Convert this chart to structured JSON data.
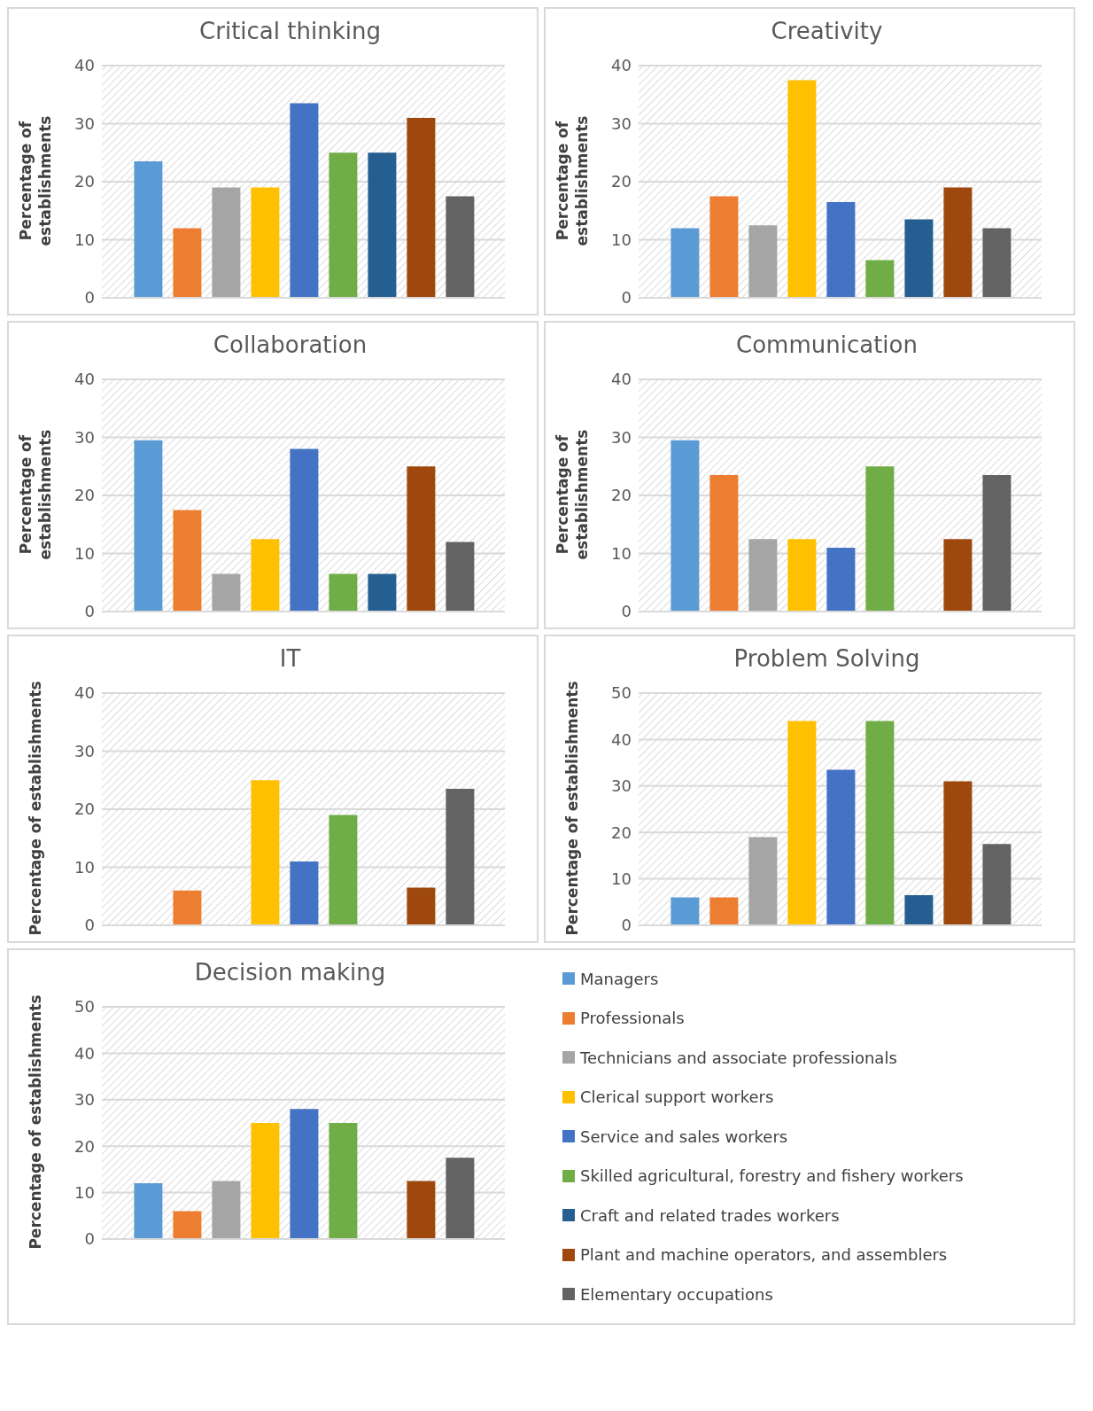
{
  "chart_data": [
    {
      "type": "bar",
      "title": "Critical thinking",
      "ylabel": "Percentage of establishments",
      "categories": [
        null
      ],
      "ylim": [
        0,
        40
      ],
      "yticks": [
        0,
        10,
        20,
        30,
        40
      ],
      "grid": "y",
      "legend": false,
      "series": [
        {
          "color": "#5b9bd5",
          "values": [
            23.5
          ]
        },
        {
          "color": "#ed7d31",
          "values": [
            12
          ]
        },
        {
          "color": "#a5a5a5",
          "values": [
            19
          ]
        },
        {
          "color": "#ffc000",
          "values": [
            19
          ]
        },
        {
          "color": "#4472c4",
          "values": [
            33.5
          ]
        },
        {
          "color": "#70ad47",
          "values": [
            25
          ]
        },
        {
          "color": "#255e91",
          "values": [
            25
          ]
        },
        {
          "color": "#9e480e",
          "values": [
            31
          ]
        },
        {
          "color": "#636363",
          "values": [
            17.5
          ]
        }
      ]
    },
    {
      "type": "bar",
      "title": "Creativity",
      "ylabel": "Percentage of establishments",
      "categories": [
        null
      ],
      "ylim": [
        0,
        40
      ],
      "yticks": [
        0,
        10,
        20,
        30,
        40
      ],
      "grid": "y",
      "legend": false,
      "series": [
        {
          "color": "#5b9bd5",
          "values": [
            12
          ]
        },
        {
          "color": "#ed7d31",
          "values": [
            17.5
          ]
        },
        {
          "color": "#a5a5a5",
          "values": [
            12.5
          ]
        },
        {
          "color": "#ffc000",
          "values": [
            37.5
          ]
        },
        {
          "color": "#4472c4",
          "values": [
            16.5
          ]
        },
        {
          "color": "#70ad47",
          "values": [
            6.5
          ]
        },
        {
          "color": "#255e91",
          "values": [
            13.5
          ]
        },
        {
          "color": "#9e480e",
          "values": [
            19
          ]
        },
        {
          "color": "#636363",
          "values": [
            12
          ]
        }
      ]
    },
    {
      "type": "bar",
      "title": "Collaboration",
      "ylabel": "Percentage of establishments",
      "categories": [
        null
      ],
      "ylim": [
        0,
        40
      ],
      "yticks": [
        0,
        10,
        20,
        30,
        40
      ],
      "grid": "y",
      "legend": false,
      "series": [
        {
          "color": "#5b9bd5",
          "values": [
            29.5
          ]
        },
        {
          "color": "#ed7d31",
          "values": [
            17.5
          ]
        },
        {
          "color": "#a5a5a5",
          "values": [
            6.5
          ]
        },
        {
          "color": "#ffc000",
          "values": [
            12.5
          ]
        },
        {
          "color": "#4472c4",
          "values": [
            28
          ]
        },
        {
          "color": "#70ad47",
          "values": [
            6.5
          ]
        },
        {
          "color": "#255e91",
          "values": [
            6.5
          ]
        },
        {
          "color": "#9e480e",
          "values": [
            25
          ]
        },
        {
          "color": "#636363",
          "values": [
            12
          ]
        }
      ]
    },
    {
      "type": "bar",
      "title": "Communication",
      "ylabel": "Percentage of establishments",
      "categories": [
        null
      ],
      "ylim": [
        0,
        40
      ],
      "yticks": [
        0,
        10,
        20,
        30,
        40
      ],
      "grid": "y",
      "legend": false,
      "series": [
        {
          "color": "#5b9bd5",
          "values": [
            29.5
          ]
        },
        {
          "color": "#ed7d31",
          "values": [
            23.5
          ]
        },
        {
          "color": "#a5a5a5",
          "values": [
            12.5
          ]
        },
        {
          "color": "#ffc000",
          "values": [
            12.5
          ]
        },
        {
          "color": "#4472c4",
          "values": [
            11
          ]
        },
        {
          "color": "#70ad47",
          "values": [
            25
          ]
        },
        {
          "color": "#255e91",
          "values": [
            null
          ]
        },
        {
          "color": "#9e480e",
          "values": [
            12.5
          ]
        },
        {
          "color": "#636363",
          "values": [
            23.5
          ]
        }
      ]
    },
    {
      "type": "bar",
      "title": "IT",
      "ylabel": "Percentage of establishments",
      "categories": [
        null
      ],
      "ylim": [
        0,
        40
      ],
      "yticks": [
        0,
        10,
        20,
        30,
        40
      ],
      "grid": "y",
      "legend": false,
      "series": [
        {
          "color": "#5b9bd5",
          "values": [
            null
          ]
        },
        {
          "color": "#ed7d31",
          "values": [
            6
          ]
        },
        {
          "color": "#a5a5a5",
          "values": [
            null
          ]
        },
        {
          "color": "#ffc000",
          "values": [
            25
          ]
        },
        {
          "color": "#4472c4",
          "values": [
            11
          ]
        },
        {
          "color": "#70ad47",
          "values": [
            19
          ]
        },
        {
          "color": "#255e91",
          "values": [
            null
          ]
        },
        {
          "color": "#9e480e",
          "values": [
            6.5
          ]
        },
        {
          "color": "#636363",
          "values": [
            23.5
          ]
        }
      ]
    },
    {
      "type": "bar",
      "title": "Problem Solving",
      "ylabel": "Percentage of establishments",
      "categories": [
        null
      ],
      "ylim": [
        0,
        50
      ],
      "yticks": [
        0,
        10,
        20,
        30,
        40,
        50
      ],
      "grid": "y",
      "legend": false,
      "series": [
        {
          "color": "#5b9bd5",
          "values": [
            6
          ]
        },
        {
          "color": "#ed7d31",
          "values": [
            6
          ]
        },
        {
          "color": "#a5a5a5",
          "values": [
            19
          ]
        },
        {
          "color": "#ffc000",
          "values": [
            44
          ]
        },
        {
          "color": "#4472c4",
          "values": [
            33.5
          ]
        },
        {
          "color": "#70ad47",
          "values": [
            44
          ]
        },
        {
          "color": "#255e91",
          "values": [
            6.5
          ]
        },
        {
          "color": "#9e480e",
          "values": [
            31
          ]
        },
        {
          "color": "#636363",
          "values": [
            17.5
          ]
        }
      ]
    },
    {
      "type": "bar",
      "title": "Decision making",
      "ylabel": "Percentage of establishments",
      "categories": [
        null
      ],
      "ylim": [
        0,
        50
      ],
      "yticks": [
        0,
        10,
        20,
        30,
        40,
        50
      ],
      "grid": "y",
      "legend": "right",
      "series": [
        {
          "name": "Managers",
          "color": "#5b9bd5",
          "values": [
            12
          ]
        },
        {
          "name": "Professionals",
          "color": "#ed7d31",
          "values": [
            6
          ]
        },
        {
          "name": "Technicians and associate professionals",
          "color": "#a5a5a5",
          "values": [
            12.5
          ]
        },
        {
          "name": "Clerical support workers",
          "color": "#ffc000",
          "values": [
            25
          ]
        },
        {
          "name": "Service and sales workers",
          "color": "#4472c4",
          "values": [
            28
          ]
        },
        {
          "name": "Skilled agricultural, forestry and fishery workers",
          "color": "#70ad47",
          "values": [
            25
          ]
        },
        {
          "name": "Craft and related trades workers",
          "color": "#255e91",
          "values": [
            null
          ]
        },
        {
          "name": "Plant and machine operators, and assemblers",
          "color": "#9e480e",
          "values": [
            12.5
          ]
        },
        {
          "name": "Elementary occupations",
          "color": "#636363",
          "values": [
            17.5
          ]
        }
      ]
    }
  ]
}
